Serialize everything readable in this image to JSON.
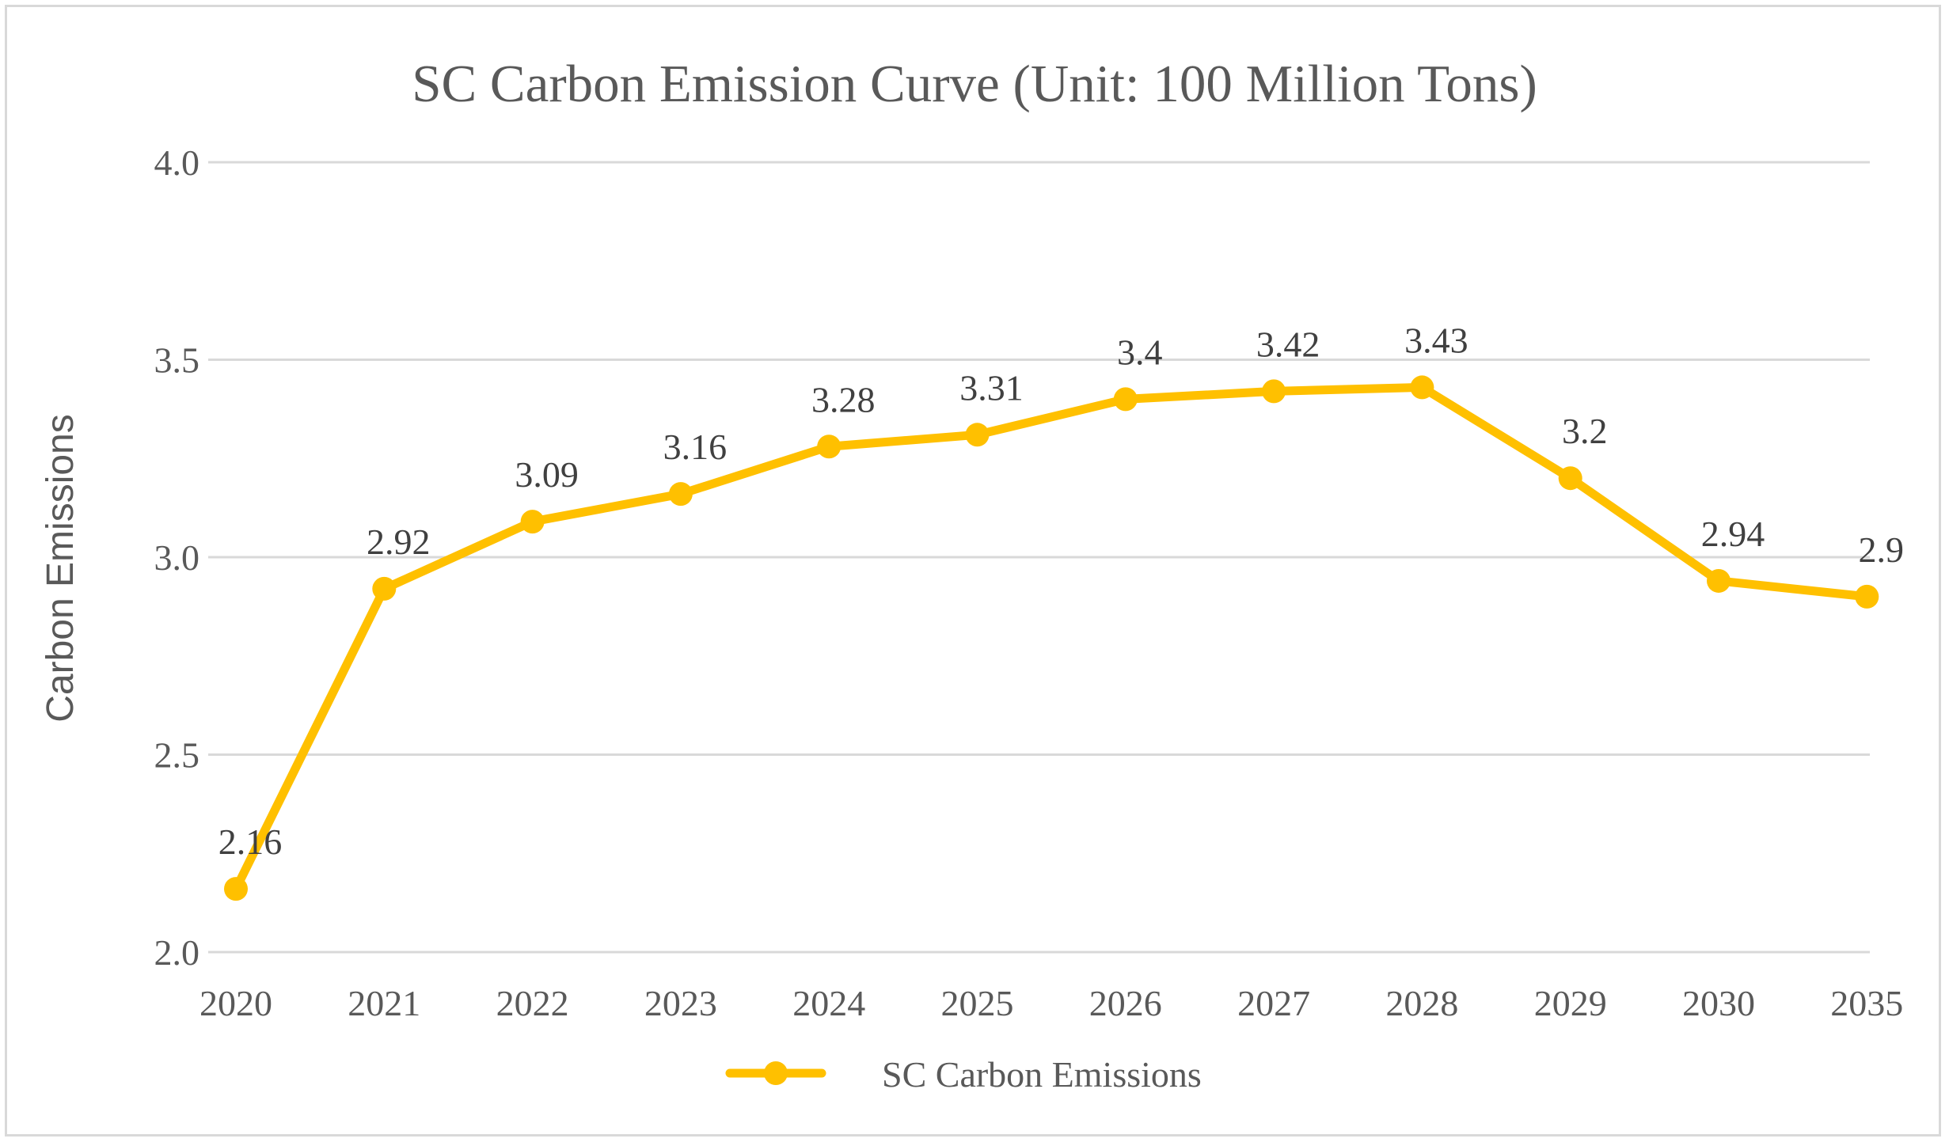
{
  "chart_data": {
    "type": "line",
    "title": "SC  Carbon Emission Curve (Unit: 100 Million Tons)",
    "xlabel": "",
    "ylabel": "Carbon Emissions",
    "categories": [
      "2020",
      "2021",
      "2022",
      "2023",
      "2024",
      "2025",
      "2026",
      "2027",
      "2028",
      "2029",
      "2030",
      "2035"
    ],
    "series": [
      {
        "name": "SC  Carbon Emissions",
        "values": [
          2.16,
          2.92,
          3.09,
          3.16,
          3.28,
          3.31,
          3.4,
          3.42,
          3.43,
          3.2,
          2.94,
          2.9
        ],
        "labels": [
          "2.16",
          "2.92",
          "3.09",
          "3.16",
          "3.28",
          "3.31",
          "3.4",
          "3.42",
          "3.43",
          "3.2",
          "2.94",
          "2.9"
        ],
        "color": "#ffc000"
      }
    ],
    "ylim": [
      2.0,
      4.0
    ],
    "yticks": [
      "2.0",
      "2.5",
      "3.0",
      "3.5",
      "4.0"
    ],
    "grid": true,
    "legend": "bottom-center",
    "colors": {
      "grid": "#d9d9d9",
      "text": "#595959",
      "border": "#d9d9d9"
    }
  }
}
